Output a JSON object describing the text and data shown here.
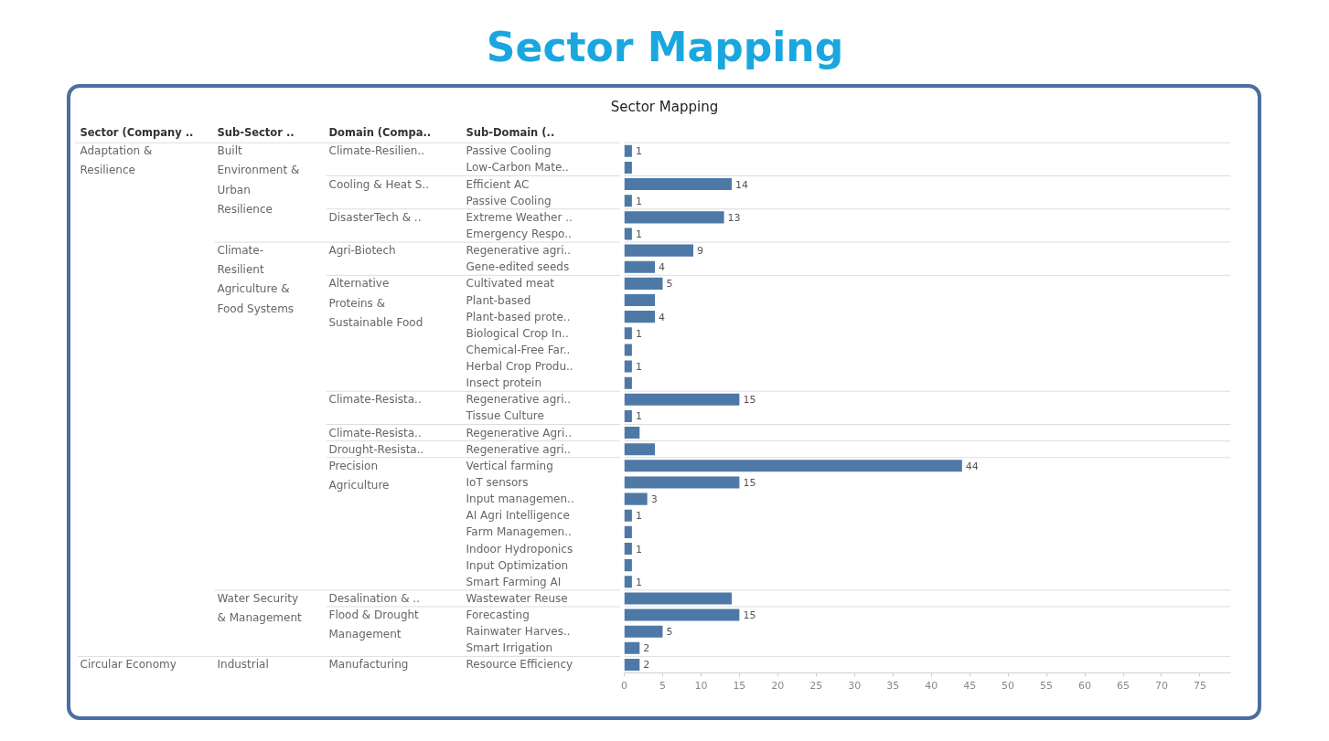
{
  "chart_data": {
    "type": "bar",
    "orientation": "horizontal",
    "title": "Sector Mapping",
    "subtitle": "Sector Mapping",
    "ylabel": "Sub-Domain (..",
    "categories": [
      "Passive Cooling",
      "Low-Carbon Mate..",
      "Efficient AC",
      "Passive Cooling",
      "Extreme Weather ..",
      "Emergency Respo..",
      "Regenerative agri..",
      "Gene-edited seeds",
      "Cultivated meat",
      "Plant-based",
      "Plant-based prote..",
      "Biological Crop In..",
      "Chemical-Free Far..",
      "Herbal Crop Produ..",
      "Insect protein",
      "Regenerative agri..",
      "Tissue Culture",
      "Regenerative Agri..",
      "Regenerative agri..",
      "Vertical farming",
      "IoT sensors",
      "Input managemen..",
      "AI Agri Intelligence",
      "Farm Managemen..",
      "Indoor Hydroponics",
      "Input Optimization",
      "Smart Farming AI",
      "Wastewater Reuse",
      "Forecasting",
      "Rainwater Harves..",
      "Smart Irrigation",
      "Resource Efficiency"
    ],
    "values": [
      1,
      1,
      14,
      1,
      13,
      1,
      9,
      4,
      5,
      4,
      4,
      1,
      1,
      1,
      1,
      15,
      1,
      2,
      4,
      44,
      15,
      3,
      1,
      1,
      1,
      1,
      1,
      14,
      15,
      5,
      2,
      2
    ],
    "value_labels": [
      "1",
      null,
      "14",
      "1",
      "13",
      "1",
      "9",
      "4",
      "5",
      null,
      "4",
      "1",
      null,
      "1",
      null,
      "15",
      "1",
      null,
      null,
      "44",
      "15",
      "3",
      "1",
      null,
      "1",
      null,
      "1",
      null,
      "15",
      "5",
      "2",
      "2"
    ],
    "color": "#4e79a7",
    "xlim": [
      0,
      79
    ],
    "xticks": [
      0,
      5,
      10,
      15,
      20,
      25,
      30,
      35,
      40,
      45,
      50,
      55,
      60,
      65,
      70,
      75
    ],
    "grid": false,
    "annotations": [
      "Sector (Company ..",
      "Sub-Sector ..",
      "Domain (Compa..",
      "Adaptation & Resilience",
      "Built Environment & Urban Resilience",
      "Climate-Resilien..",
      "Cooling & Heat S..",
      "DisasterTech & ..",
      "Climate-Resilient Agriculture & Food Systems",
      "Agri-Biotech",
      "Alternative Proteins & Sustainable Food",
      "Climate-Resista..",
      "Climate-Resista..",
      "Drought-Resista..",
      "Precision Agriculture",
      "Water Security & Management",
      "Desalination & ..",
      "Flood & Drought Management",
      "Circular Economy",
      "Industrial",
      "Manufacturing"
    ]
  }
}
